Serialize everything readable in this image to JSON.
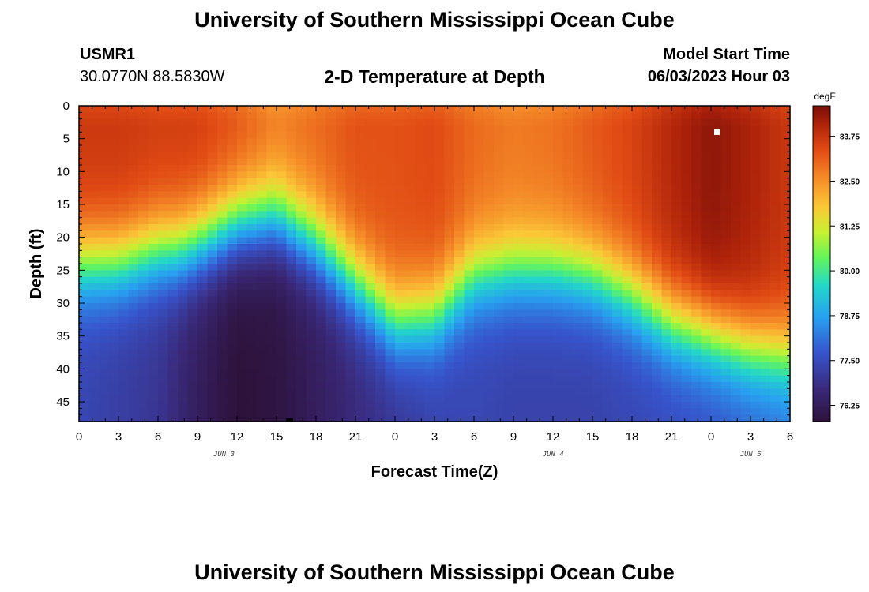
{
  "header": {
    "title": "University of Southern Mississippi Ocean Cube",
    "station": "USMR1",
    "coords": "30.0770N  88.5830W",
    "plot_title": "2-D Temperature at Depth",
    "model_label": "Model Start Time",
    "model_time": "06/03/2023 Hour 03"
  },
  "footer": {
    "title": "University of Southern Mississippi Ocean Cube"
  },
  "chart_data": {
    "type": "heatmap",
    "title": "2-D Temperature at Depth",
    "xlabel": "Forecast Time(Z)",
    "ylabel": "Depth (ft)",
    "x_tick_labels": [
      "0",
      "3",
      "6",
      "9",
      "12",
      "15",
      "18",
      "21",
      "0",
      "3",
      "6",
      "9",
      "12",
      "15",
      "18",
      "21",
      "0",
      "3",
      "6"
    ],
    "x_hours_since_start": [
      0,
      3,
      6,
      9,
      12,
      15,
      18,
      21,
      24,
      27,
      30,
      33,
      36,
      39,
      42,
      45,
      48,
      51,
      54
    ],
    "date_labels": [
      {
        "label": "JUN 3",
        "hour": 11
      },
      {
        "label": "JUN 4",
        "hour": 36
      },
      {
        "label": "JUN 5",
        "hour": 51
      }
    ],
    "y_ticks": [
      0,
      5,
      10,
      15,
      20,
      25,
      30,
      35,
      40,
      45
    ],
    "ylim": [
      0,
      48
    ],
    "y_inverted": true,
    "colorbar": {
      "unit": "degF",
      "ticks": [
        "83.75",
        "82.50",
        "81.25",
        "80.00",
        "78.75",
        "77.50",
        "76.25"
      ],
      "range": [
        75.8,
        84.6
      ]
    },
    "thermocline_depth_ft": {
      "hours": [
        0,
        3,
        6,
        7.5,
        9,
        12,
        15,
        18,
        21,
        24,
        27,
        30,
        33,
        36,
        39,
        42,
        45,
        48,
        51,
        54
      ],
      "values": [
        24,
        24,
        22,
        22,
        21,
        18,
        17,
        21,
        27,
        33,
        32,
        26,
        25,
        25,
        26,
        29,
        33,
        35,
        37,
        38
      ]
    },
    "surface_temp_degF": {
      "hours": [
        0,
        3,
        6,
        9,
        12,
        15,
        18,
        21,
        24,
        27,
        30,
        33,
        36,
        39,
        42,
        45,
        48,
        51,
        54
      ],
      "values": [
        83.7,
        83.7,
        83.6,
        83.6,
        83.3,
        82.8,
        83.0,
        83.3,
        83.3,
        83.4,
        83.0,
        82.8,
        82.9,
        83.2,
        83.5,
        84.0,
        84.4,
        84.1,
        83.7
      ]
    },
    "bottom_temp_degF": {
      "hours": [
        0,
        3,
        6,
        9,
        12,
        15,
        18,
        21,
        24,
        27,
        30,
        33,
        36,
        39,
        42,
        45,
        48,
        51,
        54
      ],
      "values": [
        77.4,
        77.2,
        77.0,
        76.3,
        75.8,
        75.9,
        76.3,
        76.7,
        77.0,
        77.3,
        77.4,
        77.3,
        77.3,
        77.3,
        77.4,
        77.5,
        77.6,
        77.8,
        78.0
      ]
    }
  }
}
